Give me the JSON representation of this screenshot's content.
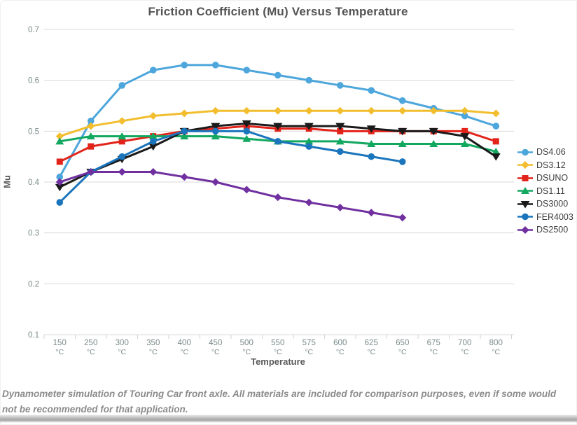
{
  "chart_data": {
    "type": "line",
    "title": "Friction Coefficient (Mu) Versus Temperature",
    "xlabel": "Temperature",
    "ylabel": "Mu",
    "ylim": [
      0.1,
      0.7
    ],
    "y_ticks": [
      0.1,
      0.2,
      0.3,
      0.4,
      0.5,
      0.6,
      0.7
    ],
    "grid": true,
    "legend_position": "right",
    "categories": [
      "150",
      "250",
      "300",
      "350",
      "400",
      "450",
      "500",
      "550",
      "575",
      "600",
      "625",
      "650",
      "675",
      "700",
      "800"
    ],
    "category_unit": "°C",
    "series": [
      {
        "name": "DS4.06",
        "color": "#4da6dc",
        "marker": "circle",
        "values": [
          0.41,
          0.52,
          0.59,
          0.62,
          0.63,
          0.63,
          0.62,
          0.61,
          0.6,
          0.59,
          0.58,
          0.56,
          0.545,
          0.53,
          0.51
        ]
      },
      {
        "name": "DS3.12",
        "color": "#f2be2e",
        "marker": "diamond",
        "values": [
          0.49,
          0.51,
          0.52,
          0.53,
          0.535,
          0.54,
          0.54,
          0.54,
          0.54,
          0.54,
          0.54,
          0.54,
          0.54,
          0.54,
          0.535
        ]
      },
      {
        "name": "DSUNO",
        "color": "#e2231a",
        "marker": "square",
        "values": [
          0.44,
          0.47,
          0.48,
          0.49,
          0.5,
          0.505,
          0.51,
          0.505,
          0.505,
          0.5,
          0.5,
          0.5,
          0.5,
          0.5,
          0.48
        ]
      },
      {
        "name": "DS1.11",
        "color": "#12a860",
        "marker": "triangle-up",
        "values": [
          0.48,
          0.49,
          0.49,
          0.49,
          0.49,
          0.49,
          0.485,
          0.48,
          0.48,
          0.48,
          0.475,
          0.475,
          0.475,
          0.475,
          0.46
        ]
      },
      {
        "name": "DS3000",
        "color": "#1a1a1a",
        "marker": "triangle-down",
        "values": [
          0.39,
          0.42,
          0.445,
          0.47,
          0.5,
          0.51,
          0.515,
          0.51,
          0.51,
          0.51,
          0.505,
          0.5,
          0.5,
          0.49,
          0.45
        ]
      },
      {
        "name": "FER4003",
        "color": "#1b75bc",
        "marker": "circle",
        "values": [
          0.36,
          0.42,
          0.45,
          0.48,
          0.5,
          0.5,
          0.5,
          0.48,
          0.47,
          0.46,
          0.45,
          0.44,
          null,
          null,
          null
        ]
      },
      {
        "name": "DS2500",
        "color": "#7030a0",
        "marker": "diamond",
        "values": [
          0.4,
          0.42,
          0.42,
          0.42,
          0.41,
          0.4,
          0.385,
          0.37,
          0.36,
          0.35,
          0.34,
          0.33,
          null,
          null,
          null
        ]
      }
    ]
  },
  "caption": {
    "text": "Dynamometer simulation of Touring Car front axle. All materials are included for comparison purposes, even if some would not be recommended for that application."
  },
  "style": {
    "grid_color": "#d9d9d9",
    "tick_label_color": "#7a8a8a",
    "title_color": "#545454"
  }
}
